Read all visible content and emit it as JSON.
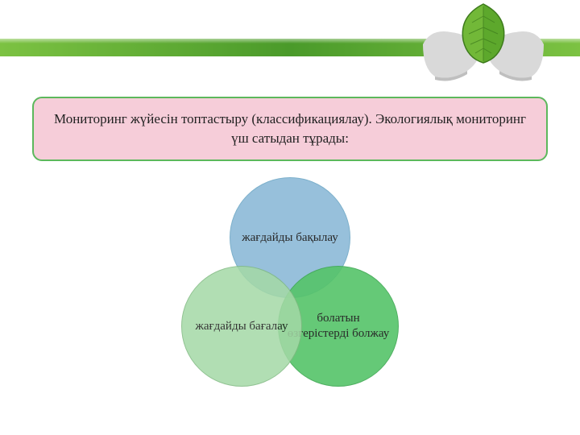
{
  "header": {
    "band_gradient": [
      "#7cc242",
      "#4a9a2a",
      "#7cc242"
    ]
  },
  "leaf": {
    "leaf_fill": "#5da82c",
    "leaf_edge": "#3d7a1c",
    "leaf_shine": "#9bd84f",
    "hand_fill": "#d9d9d9",
    "hand_shadow": "#bfbfbf"
  },
  "title": {
    "text": "Мониторинг жүйесін топтастыру (классификациялау). Экологиялық мониторинг үш сатыдан тұрады:",
    "bg_color": "#f6cdd9",
    "border_color": "#5cb85c",
    "text_color": "#222222",
    "fontsize": 17,
    "border_radius": 12
  },
  "venn": {
    "type": "venn-3",
    "circle_diameter": 150,
    "label_fontsize": 15,
    "circles": {
      "top": {
        "label": "жағдайды бақылау",
        "fill": "#8cbad8",
        "stroke": "#6fa8c6",
        "opacity": 0.9
      },
      "left": {
        "label": "жағдайды бағалау",
        "fill": "#a4d9a6",
        "stroke": "#7fb981",
        "opacity": 0.85
      },
      "right": {
        "label": "болатын өзгерістерді болжау",
        "fill": "#55c469",
        "stroke": "#3ea852",
        "opacity": 0.9
      }
    }
  }
}
